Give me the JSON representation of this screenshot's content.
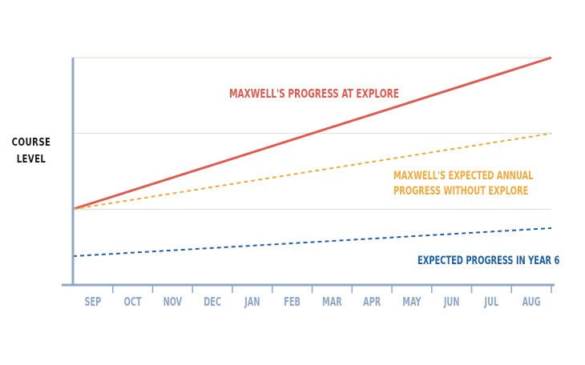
{
  "chart_data": {
    "type": "line",
    "ylabel": [
      "COURSE",
      "LEVEL"
    ],
    "categories": [
      "SEP",
      "OCT",
      "NOV",
      "DEC",
      "JAN",
      "FEB",
      "MAR",
      "APR",
      "MAY",
      "JUN",
      "JUL",
      "AUG"
    ],
    "ylim": [
      0,
      3
    ],
    "gridlines": [
      1,
      2,
      3
    ],
    "grid": true,
    "series": [
      {
        "name": "MAXWELL'S PROGRESS AT EXPLORE",
        "start": 1.0,
        "end": 3.0,
        "style": "solid",
        "color": "#e05a4f"
      },
      {
        "name": "MAXWELL'S EXPECTED ANNUAL PROGRESS WITHOUT EXPLORE",
        "label_lines": [
          "MAXWELL'S EXPECTED ANNUAL",
          "PROGRESS WITHOUT EXPLORE"
        ],
        "start": 1.0,
        "end": 2.0,
        "style": "dashed",
        "color": "#f2a93b"
      },
      {
        "name": "EXPECTED PROGRESS IN YEAR 6",
        "start": 0.38,
        "end": 0.75,
        "style": "dashed",
        "color": "#1e5fa8"
      }
    ],
    "axis_color": "#8ea6c8",
    "grid_color": "#dcdcd2"
  }
}
